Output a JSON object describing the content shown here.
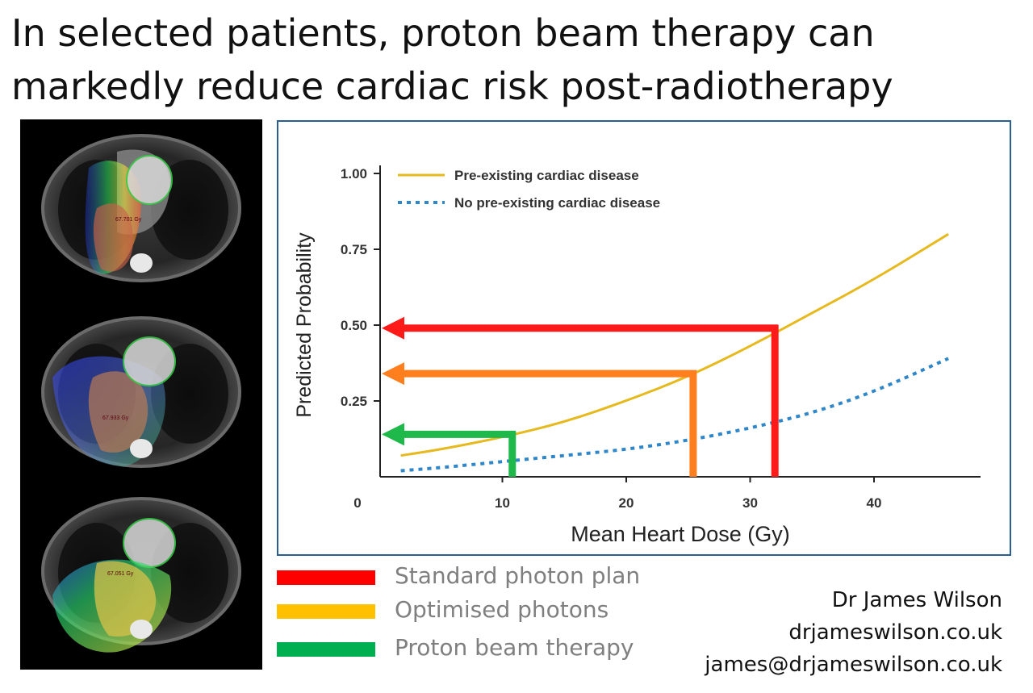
{
  "slide": {
    "title": "In selected patients, proton beam therapy can markedly reduce cardiac risk post-radiotherapy"
  },
  "ct_images": {
    "scans": [
      {
        "name": "standard-photon-scan",
        "dose_label": "67.701 Gy"
      },
      {
        "name": "optimised-photon-scan",
        "dose_label": "67.933 Gy"
      },
      {
        "name": "proton-scan",
        "dose_label": "67.051 Gy"
      }
    ]
  },
  "chart_data": {
    "type": "line",
    "xlabel": "Mean Heart Dose (Gy)",
    "ylabel": "Predicted Probability",
    "xlim": [
      0,
      48
    ],
    "ylim": [
      0,
      1.05
    ],
    "xticks": [
      0,
      10,
      20,
      30,
      40
    ],
    "xtick_labels": [
      "0",
      "10",
      "20",
      "30",
      "40"
    ],
    "yticks": [
      0.25,
      0.5,
      0.75,
      1.0
    ],
    "ytick_labels": [
      "0.25",
      "0.50",
      "0.75",
      "1.00"
    ],
    "legend_position": "top-left",
    "series": [
      {
        "name": "Pre-existing cardiac disease",
        "style": "solid",
        "color": "#e6b91e",
        "x": [
          1.8,
          5,
          10,
          15,
          20,
          25,
          30,
          35,
          40,
          46
        ],
        "y": [
          0.07,
          0.09,
          0.13,
          0.18,
          0.25,
          0.33,
          0.43,
          0.54,
          0.65,
          0.8
        ]
      },
      {
        "name": "No pre-existing cardiac disease",
        "style": "dotted",
        "color": "#2f86c8",
        "x": [
          1.8,
          5,
          10,
          15,
          20,
          25,
          30,
          35,
          40,
          46
        ],
        "y": [
          0.02,
          0.03,
          0.05,
          0.07,
          0.09,
          0.12,
          0.16,
          0.21,
          0.28,
          0.39
        ]
      }
    ],
    "annotations": [
      {
        "label": "Standard photon plan",
        "dose": 32,
        "probability": 0.49,
        "color": "#ff1a1a"
      },
      {
        "label": "Optimised photons",
        "dose": 25.4,
        "probability": 0.34,
        "color": "#ff7f1e"
      },
      {
        "label": "Proton beam therapy",
        "dose": 10.8,
        "probability": 0.14,
        "color": "#1fb84a"
      }
    ]
  },
  "legend": {
    "items": [
      {
        "label": "Standard photon plan",
        "color": "#ff0000"
      },
      {
        "label": "Optimised photons",
        "color": "#ffc000"
      },
      {
        "label": "Proton beam therapy",
        "color": "#00b050"
      }
    ]
  },
  "author": {
    "name": "Dr James Wilson",
    "website": "drjameswilson.co.uk",
    "email": "james@drjameswilson.co.uk"
  }
}
